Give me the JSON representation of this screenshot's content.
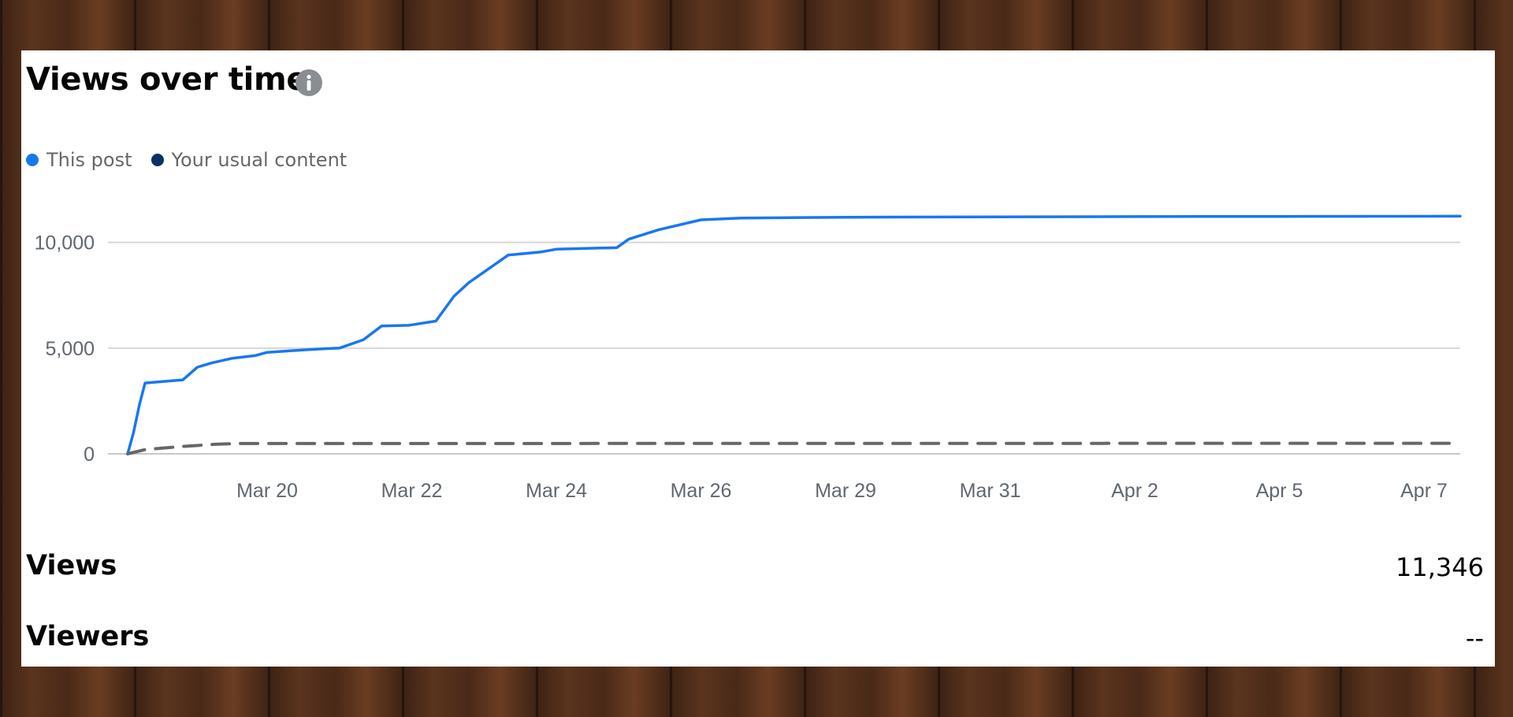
{
  "card": {
    "title": "Views over time",
    "info_icon": "info-icon"
  },
  "legend": [
    {
      "label": "This post",
      "color": "#1877f2"
    },
    {
      "label": "Your usual content",
      "color": "#0a3161"
    }
  ],
  "chart_data": {
    "type": "line",
    "xlabel": "",
    "ylabel": "",
    "ylim": [
      0,
      12000
    ],
    "y_ticks": [
      0,
      5000,
      10000
    ],
    "y_tick_labels": [
      "0",
      "5,000",
      "10,000"
    ],
    "x_ticks": [
      "Mar 20",
      "Mar 22",
      "Mar 24",
      "Mar 26",
      "Mar 29",
      "Mar 31",
      "Apr 2",
      "Apr 5",
      "Apr 7"
    ],
    "grid": true,
    "legend_position": "top-left",
    "series": [
      {
        "name": "This post",
        "color": "#1877f2",
        "style": "solid",
        "points": [
          {
            "x": "Mar 18 00:00",
            "y": 0
          },
          {
            "x": "Mar 18 02:00",
            "y": 1000
          },
          {
            "x": "Mar 18 04:00",
            "y": 2300
          },
          {
            "x": "Mar 18 06:00",
            "y": 3350
          },
          {
            "x": "Mar 18 12:00",
            "y": 3420
          },
          {
            "x": "Mar 18 19:00",
            "y": 3500
          },
          {
            "x": "Mar 19 00:00",
            "y": 4100
          },
          {
            "x": "Mar 19 05:00",
            "y": 4300
          },
          {
            "x": "Mar 19 12:00",
            "y": 4520
          },
          {
            "x": "Mar 19 20:00",
            "y": 4650
          },
          {
            "x": "Mar 20 00:00",
            "y": 4800
          },
          {
            "x": "Mar 20 08:00",
            "y": 4880
          },
          {
            "x": "Mar 20 19:00",
            "y": 4970
          },
          {
            "x": "Mar 21 00:00",
            "y": 5000
          },
          {
            "x": "Mar 21 08:00",
            "y": 5400
          },
          {
            "x": "Mar 21 14:00",
            "y": 6050
          },
          {
            "x": "Mar 21 23:00",
            "y": 6080
          },
          {
            "x": "Mar 22 00:00",
            "y": 6100
          },
          {
            "x": "Mar 22 08:00",
            "y": 6280
          },
          {
            "x": "Mar 22 14:00",
            "y": 7450
          },
          {
            "x": "Mar 22 19:00",
            "y": 8100
          },
          {
            "x": "Mar 23 00:00",
            "y": 8600
          },
          {
            "x": "Mar 23 08:00",
            "y": 9400
          },
          {
            "x": "Mar 23 19:00",
            "y": 9550
          },
          {
            "x": "Mar 24 00:00",
            "y": 9680
          },
          {
            "x": "Mar 24 10:00",
            "y": 9720
          },
          {
            "x": "Mar 24 20:00",
            "y": 9750
          },
          {
            "x": "Mar 25 00:00",
            "y": 10150
          },
          {
            "x": "Mar 25 10:00",
            "y": 10600
          },
          {
            "x": "Mar 26 00:00",
            "y": 11070
          },
          {
            "x": "Mar 26 20:00",
            "y": 11150
          },
          {
            "x": "Mar 29 00:00",
            "y": 11190
          },
          {
            "x": "Apr 2 00:00",
            "y": 11220
          },
          {
            "x": "Apr 5 00:00",
            "y": 11230
          },
          {
            "x": "Apr 7 12:00",
            "y": 11240
          }
        ]
      },
      {
        "name": "Your usual content",
        "color": "#65676b",
        "style": "dashed",
        "points": [
          {
            "x": "Mar 18 00:00",
            "y": 0
          },
          {
            "x": "Mar 18 06:00",
            "y": 200
          },
          {
            "x": "Mar 18 19:00",
            "y": 350
          },
          {
            "x": "Mar 19 06:00",
            "y": 450
          },
          {
            "x": "Mar 19 14:00",
            "y": 490
          },
          {
            "x": "Apr 7 12:00",
            "y": 500
          }
        ]
      }
    ]
  },
  "stats": {
    "views_label": "Views",
    "views_value": "11,346",
    "viewers_label": "Viewers",
    "viewers_value": "--"
  }
}
